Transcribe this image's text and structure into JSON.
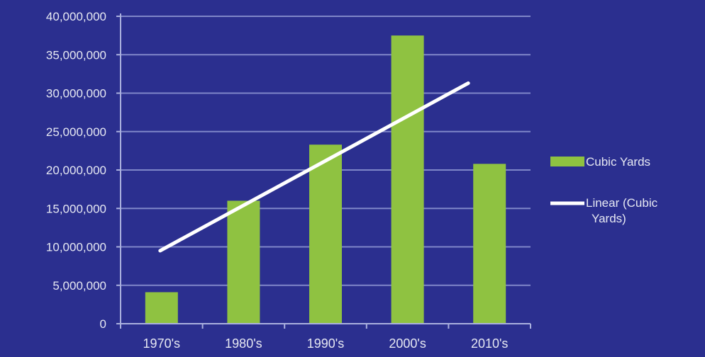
{
  "colors": {
    "background": "#2b2f8f",
    "gridline": "#7f86c8",
    "axis": "#aab0de",
    "bar": "#8fc241",
    "trendline": "#ffffff",
    "text": "#e6e8f2"
  },
  "chart_data": {
    "type": "bar",
    "title": "",
    "xlabel": "",
    "ylabel": "",
    "categories": [
      "1970's",
      "1980's",
      "1990's",
      "2000's",
      "2010's"
    ],
    "series": [
      {
        "name": "Cubic Yards",
        "values": [
          4100000,
          16000000,
          23300000,
          37500000,
          20800000
        ]
      }
    ],
    "trendline": {
      "name": "Linear (Cubic Yards)",
      "type": "linear",
      "start": 9500000,
      "end": 31300000
    },
    "ylim": [
      0,
      40000000
    ],
    "y_ticks": [
      "0",
      "5,000,000",
      "10,000,000",
      "15,000,000",
      "20,000,000",
      "25,000,000",
      "30,000,000",
      "35,000,000",
      "40,000,000"
    ],
    "y_tick_values": [
      0,
      5000000,
      10000000,
      15000000,
      20000000,
      25000000,
      30000000,
      35000000,
      40000000
    ],
    "grid": true,
    "legend": {
      "position": "right",
      "entries": [
        "Cubic Yards",
        "Linear (Cubic Yards)"
      ]
    }
  }
}
